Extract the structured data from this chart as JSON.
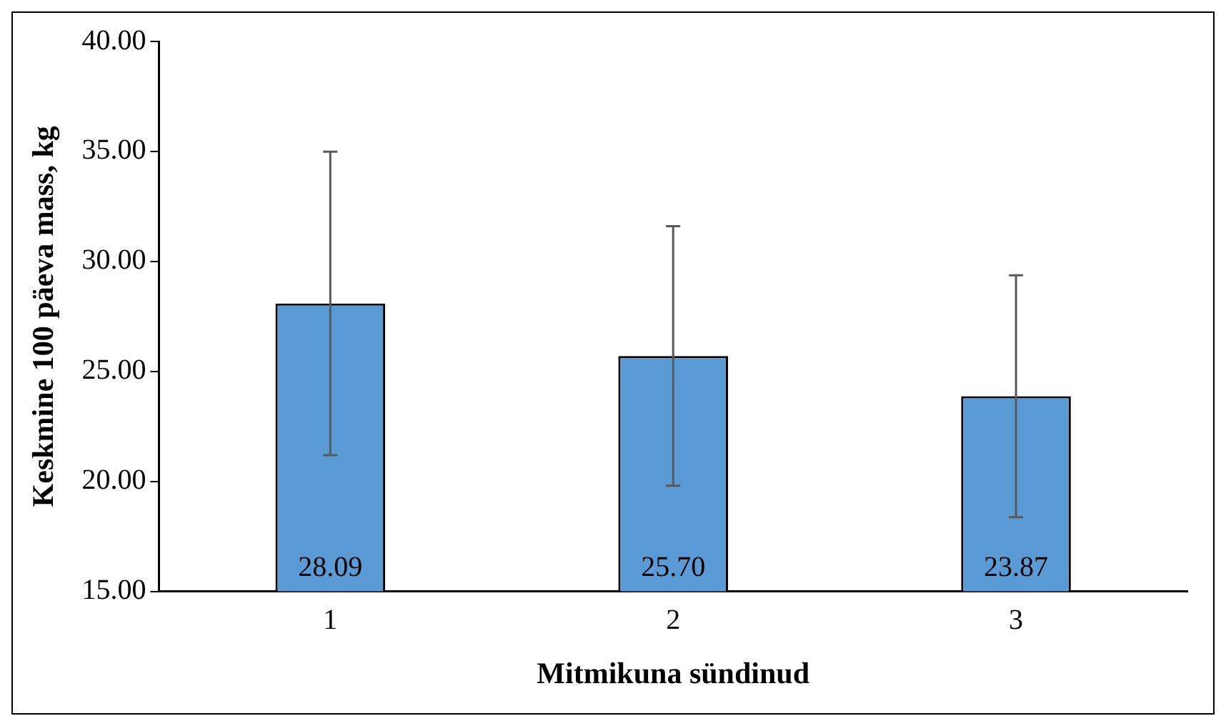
{
  "chart_data": {
    "type": "bar",
    "xlabel": "Mitmikuna sündinud",
    "ylabel": "Keskmine 100 päeva mass, kg",
    "categories": [
      "1",
      "2",
      "3"
    ],
    "values": [
      28.09,
      25.7,
      23.87
    ],
    "errors": [
      6.9,
      5.9,
      5.5
    ],
    "value_labels": [
      "28.09",
      "25.70",
      "23.87"
    ],
    "color": "#5b9bd5",
    "ylim": [
      15,
      40
    ],
    "yticks": [
      {
        "value": 15,
        "label": "15.00"
      },
      {
        "value": 20,
        "label": "20.00"
      },
      {
        "value": 25,
        "label": "25.00"
      },
      {
        "value": 30,
        "label": "30.00"
      },
      {
        "value": 35,
        "label": "35.00"
      },
      {
        "value": 40,
        "label": "40.00"
      }
    ],
    "grid": false,
    "legend": false
  }
}
